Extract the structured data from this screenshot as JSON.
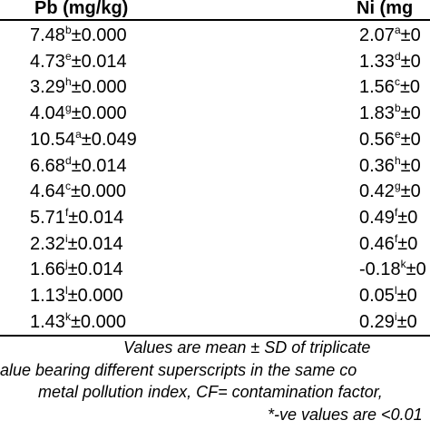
{
  "header": {
    "pb": "Pb (mg/kg)",
    "ni": "Ni (mg"
  },
  "rows": [
    {
      "pb_val": "7.48",
      "pb_sup": "b",
      "pb_sd": "±0.000",
      "ni_val": "2.07",
      "ni_sup": "a",
      "ni_sd": "±0"
    },
    {
      "pb_val": "4.73",
      "pb_sup": "e",
      "pb_sd": "±0.014",
      "ni_val": "1.33",
      "ni_sup": "d",
      "ni_sd": "±0"
    },
    {
      "pb_val": "3.29",
      "pb_sup": "h",
      "pb_sd": "±0.000",
      "ni_val": "1.56",
      "ni_sup": "c",
      "ni_sd": "±0"
    },
    {
      "pb_val": "4.04",
      "pb_sup": "g",
      "pb_sd": "±0.000",
      "ni_val": "1.83",
      "ni_sup": "b",
      "ni_sd": "±0"
    },
    {
      "pb_val": "10.54",
      "pb_sup": "a",
      "pb_sd": "±0.049",
      "ni_val": "0.56",
      "ni_sup": "e",
      "ni_sd": "±0"
    },
    {
      "pb_val": "6.68",
      "pb_sup": "d",
      "pb_sd": "±0.014",
      "ni_val": "0.36",
      "ni_sup": "h",
      "ni_sd": "±0"
    },
    {
      "pb_val": "4.64",
      "pb_sup": "c",
      "pb_sd": "±0.000",
      "ni_val": "0.42",
      "ni_sup": "g",
      "ni_sd": "±0"
    },
    {
      "pb_val": "5.71",
      "pb_sup": "f",
      "pb_sd": "±0.014",
      "ni_val": "0.49",
      "ni_sup": "f",
      "ni_sd": "±0"
    },
    {
      "pb_val": "2.32",
      "pb_sup": "i",
      "pb_sd": "±0.014",
      "ni_val": "0.46",
      "ni_sup": "f",
      "ni_sd": "±0"
    },
    {
      "pb_val": "1.66",
      "pb_sup": "j",
      "pb_sd": "±0.014",
      "ni_val": "-0.18",
      "ni_sup": "k",
      "ni_sd": "±0"
    },
    {
      "pb_val": "1.13",
      "pb_sup": "l",
      "pb_sd": "±0.000",
      "ni_val": "0.05",
      "ni_sup": "l",
      "ni_sd": "±0"
    },
    {
      "pb_val": "1.43",
      "pb_sup": "k",
      "pb_sd": "±0.000",
      "ni_val": "0.29",
      "ni_sup": "i",
      "ni_sd": "±0"
    }
  ],
  "notes": [
    "Values are mean ± SD of triplicate",
    "alue bearing different superscripts in the same co",
    "metal pollution index, CF= contamination factor,",
    "*-ve values are <0.01"
  ]
}
